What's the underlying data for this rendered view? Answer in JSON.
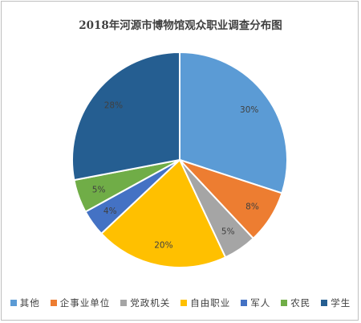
{
  "chart_data": {
    "type": "pie",
    "title": "2018年河源市博物馆观众职业调查分布图",
    "categories": [
      "其他",
      "企事业单位",
      "党政机关",
      "自由职业",
      "军人",
      "农民",
      "学生"
    ],
    "values": [
      30,
      8,
      5,
      20,
      4,
      5,
      28
    ],
    "value_labels": [
      "30%",
      "8%",
      "5%",
      "20%",
      "4%",
      "5%",
      "28%"
    ],
    "colors": [
      "#5B9BD5",
      "#ED7D31",
      "#A5A5A5",
      "#FFC000",
      "#4472C4",
      "#70AD47",
      "#255E91"
    ],
    "legend_position": "bottom",
    "start_angle_deg": 0,
    "direction": "clockwise"
  }
}
